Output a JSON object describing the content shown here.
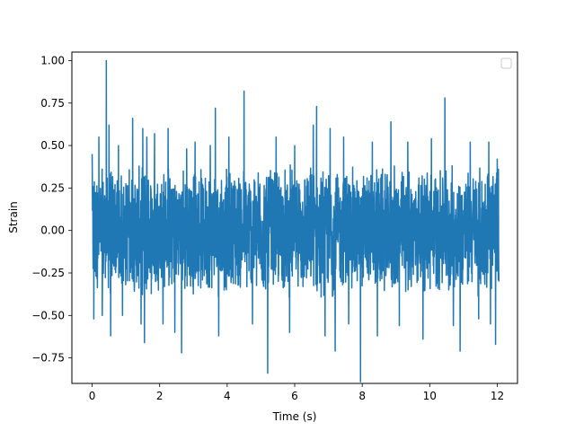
{
  "chart_data": {
    "type": "line",
    "title": "",
    "xlabel": "Time (s)",
    "ylabel": "Strain",
    "xlim": [
      -0.6,
      12.6
    ],
    "ylim": [
      -0.9,
      1.05
    ],
    "x_ticks": [
      0,
      2,
      4,
      6,
      8,
      10,
      12
    ],
    "x_tick_labels": [
      "0",
      "2",
      "4",
      "6",
      "8",
      "10",
      "12"
    ],
    "y_ticks": [
      -0.75,
      -0.5,
      -0.25,
      0.0,
      0.25,
      0.5,
      0.75,
      1.0
    ],
    "y_tick_labels": [
      "−0.75",
      "−0.50",
      "−0.25",
      "0.00",
      "0.25",
      "0.50",
      "0.75",
      "1.00"
    ],
    "grid": false,
    "legend": {
      "placement": "top-right",
      "entries": []
    },
    "series": [
      {
        "color": "#1f77b4",
        "x_range": [
          0,
          12.05
        ],
        "description_stats": {
          "min": -0.89,
          "max": 1.0,
          "typical_envelope": [
            -0.4,
            0.4
          ]
        },
        "peaks": [
          [
            0.0,
            0.45
          ],
          [
            0.05,
            -0.52
          ],
          [
            0.2,
            0.55
          ],
          [
            0.3,
            -0.5
          ],
          [
            0.42,
            1.0
          ],
          [
            0.5,
            0.62
          ],
          [
            0.55,
            -0.62
          ],
          [
            0.78,
            0.5
          ],
          [
            0.9,
            -0.5
          ],
          [
            1.2,
            0.66
          ],
          [
            1.45,
            -0.55
          ],
          [
            1.5,
            0.6
          ],
          [
            1.55,
            -0.66
          ],
          [
            1.62,
            0.55
          ],
          [
            1.85,
            0.57
          ],
          [
            2.1,
            -0.55
          ],
          [
            2.25,
            0.6
          ],
          [
            2.45,
            -0.6
          ],
          [
            2.65,
            -0.72
          ],
          [
            2.8,
            0.48
          ],
          [
            3.05,
            0.52
          ],
          [
            3.5,
            0.5
          ],
          [
            3.65,
            0.72
          ],
          [
            3.75,
            -0.62
          ],
          [
            4.05,
            0.55
          ],
          [
            4.5,
            0.82
          ],
          [
            4.75,
            -0.55
          ],
          [
            5.2,
            -0.84
          ],
          [
            5.45,
            0.55
          ],
          [
            5.85,
            -0.6
          ],
          [
            6.0,
            0.5
          ],
          [
            6.55,
            0.62
          ],
          [
            6.65,
            0.73
          ],
          [
            6.9,
            -0.62
          ],
          [
            7.05,
            0.6
          ],
          [
            7.2,
            -0.71
          ],
          [
            7.45,
            0.55
          ],
          [
            7.6,
            -0.55
          ],
          [
            7.95,
            -0.89
          ],
          [
            8.3,
            0.52
          ],
          [
            8.45,
            -0.62
          ],
          [
            8.85,
            0.64
          ],
          [
            9.1,
            -0.56
          ],
          [
            9.35,
            0.52
          ],
          [
            9.8,
            -0.64
          ],
          [
            10.05,
            0.54
          ],
          [
            10.45,
            0.78
          ],
          [
            10.7,
            -0.56
          ],
          [
            10.9,
            -0.71
          ],
          [
            11.2,
            0.52
          ],
          [
            11.45,
            -0.52
          ],
          [
            11.75,
            0.52
          ],
          [
            11.8,
            -0.55
          ],
          [
            11.95,
            -0.67
          ],
          [
            12.0,
            0.42
          ],
          [
            12.05,
            -0.3
          ]
        ]
      }
    ]
  }
}
